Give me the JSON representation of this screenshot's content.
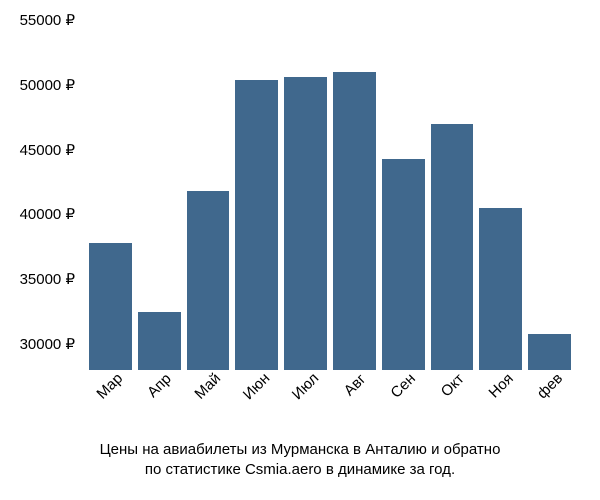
{
  "chart": {
    "type": "bar",
    "categories": [
      "Мар",
      "Апр",
      "Май",
      "Июн",
      "Июл",
      "Авг",
      "Сен",
      "Окт",
      "Ноя",
      "фев"
    ],
    "values": [
      37800,
      32500,
      41800,
      50400,
      50600,
      51000,
      44300,
      47000,
      40500,
      30800
    ],
    "bar_color": "#40688d",
    "background_color": "#ffffff",
    "ylim_min": 28000,
    "ylim_max": 55000,
    "ytick_values": [
      30000,
      35000,
      40000,
      45000,
      50000,
      55000
    ],
    "ytick_labels": [
      "30000 ₽",
      "35000 ₽",
      "40000 ₽",
      "45000 ₽",
      "50000 ₽",
      "55000 ₽"
    ],
    "tick_fontsize": 15,
    "tick_color": "#000000",
    "caption_line1": "Цены на авиабилеты из Мурманска в Анталию и обратно",
    "caption_line2": "по статистике Csmia.aero в динамике за год.",
    "caption_fontsize": 15,
    "caption_color": "#000000",
    "bar_gap": 6,
    "x_label_rotation": -45
  }
}
